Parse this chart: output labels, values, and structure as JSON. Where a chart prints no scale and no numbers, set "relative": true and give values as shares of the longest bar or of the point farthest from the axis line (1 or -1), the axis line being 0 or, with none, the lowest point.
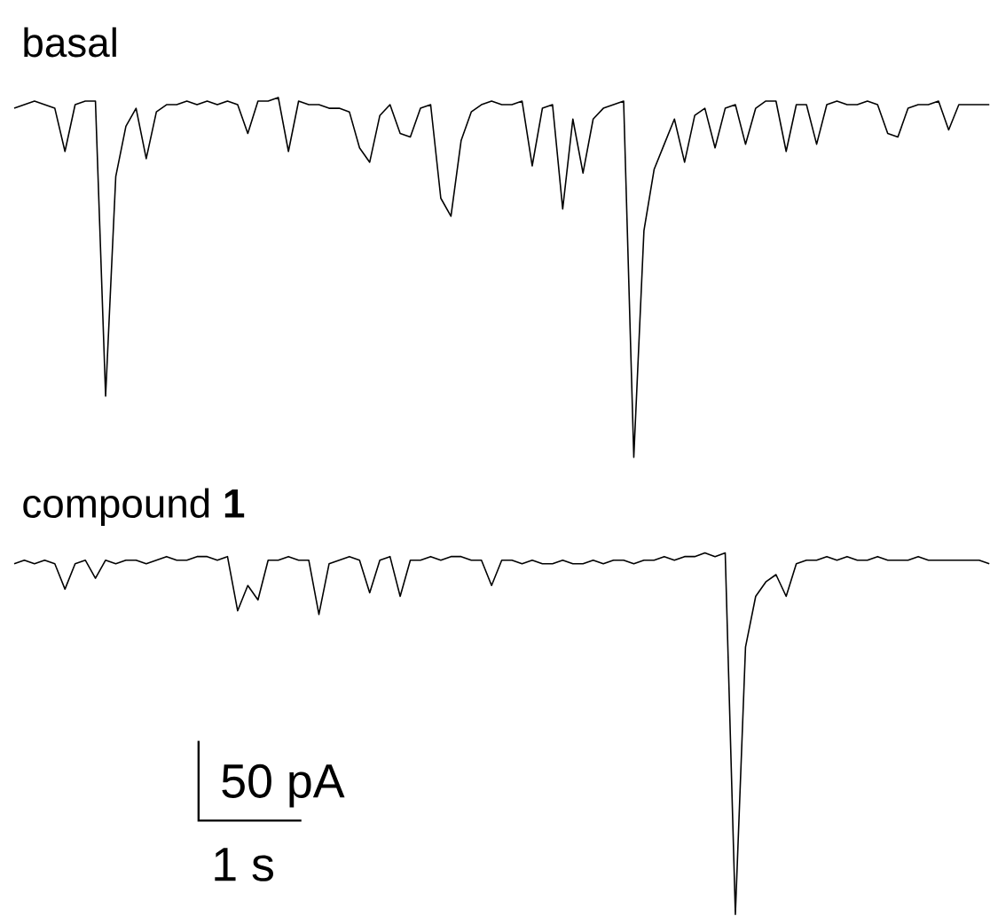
{
  "chart_data": [
    {
      "type": "line",
      "title": "basal",
      "relative": true,
      "categories": [
        null,
        null,
        null,
        null,
        null,
        null,
        null,
        null,
        null,
        null,
        null,
        null,
        null,
        null,
        null,
        null,
        null,
        null,
        null,
        null,
        null,
        null,
        null,
        null,
        null,
        null,
        null,
        null,
        null,
        null,
        null,
        null,
        null,
        null,
        null,
        null,
        null,
        null,
        null,
        null,
        null,
        null,
        null,
        null,
        null,
        null,
        null,
        null,
        null,
        null,
        null,
        null,
        null,
        null,
        null,
        null,
        null,
        null,
        null,
        null,
        null,
        null,
        null,
        null,
        null,
        null,
        null,
        null,
        null,
        null,
        null,
        null,
        null,
        null,
        null,
        null,
        null,
        null,
        null,
        null,
        null,
        null,
        null,
        null,
        null,
        null,
        null,
        null,
        null,
        null,
        null,
        null,
        null,
        null,
        null,
        null,
        null
      ],
      "series": [
        {
          "color": "#000000",
          "values": [
            0.97,
            0.98,
            0.99,
            0.98,
            0.97,
            0.85,
            0.98,
            0.99,
            0.99,
            0.17,
            0.78,
            0.92,
            0.97,
            0.83,
            0.96,
            0.98,
            0.98,
            0.99,
            0.98,
            0.99,
            0.98,
            0.99,
            0.98,
            0.9,
            0.99,
            0.99,
            1,
            0.85,
            0.99,
            0.98,
            0.98,
            0.97,
            0.97,
            0.96,
            0.86,
            0.82,
            0.95,
            0.98,
            0.9,
            0.89,
            0.97,
            0.98,
            0.72,
            0.67,
            0.88,
            0.96,
            0.98,
            0.99,
            0.98,
            0.98,
            0.99,
            0.81,
            0.97,
            0.98,
            0.69,
            0.94,
            0.79,
            0.94,
            0.97,
            0.98,
            0.99,
            0,
            0.63,
            0.8,
            0.87,
            0.94,
            0.82,
            0.95,
            0.97,
            0.86,
            0.97,
            0.98,
            0.87,
            0.97,
            0.99,
            0.99,
            0.85,
            0.98,
            0.98,
            0.87,
            0.98,
            0.99,
            0.98,
            0.98,
            0.99,
            0.98,
            0.9,
            0.89,
            0.97,
            0.98,
            0.98,
            0.99,
            0.91,
            0.98,
            0.98,
            0.98,
            0.98
          ]
        }
      ]
    },
    {
      "type": "line",
      "title": "compound **1**",
      "relative": true,
      "annotations": [
        "50 pA",
        "1 s"
      ],
      "categories": [
        null,
        null,
        null,
        null,
        null,
        null,
        null,
        null,
        null,
        null,
        null,
        null,
        null,
        null,
        null,
        null,
        null,
        null,
        null,
        null,
        null,
        null,
        null,
        null,
        null,
        null,
        null,
        null,
        null,
        null,
        null,
        null,
        null,
        null,
        null,
        null,
        null,
        null,
        null,
        null,
        null,
        null,
        null,
        null,
        null,
        null,
        null,
        null,
        null,
        null,
        null,
        null,
        null,
        null,
        null,
        null,
        null,
        null,
        null,
        null,
        null,
        null,
        null,
        null,
        null,
        null,
        null,
        null,
        null,
        null,
        null,
        null,
        null,
        null,
        null,
        null,
        null,
        null,
        null,
        null,
        null,
        null,
        null,
        null,
        null,
        null,
        null,
        null,
        null,
        null,
        null,
        null,
        null,
        null,
        null,
        null,
        null
      ],
      "series": [
        {
          "color": "#000000",
          "values": [
            0.97,
            0.98,
            0.97,
            0.98,
            0.97,
            0.9,
            0.97,
            0.98,
            0.93,
            0.98,
            0.97,
            0.98,
            0.98,
            0.97,
            0.98,
            0.99,
            0.98,
            0.98,
            0.99,
            0.99,
            0.98,
            0.99,
            0.84,
            0.91,
            0.87,
            0.98,
            0.98,
            0.99,
            0.98,
            0.98,
            0.83,
            0.97,
            0.98,
            0.99,
            0.98,
            0.89,
            0.98,
            0.99,
            0.88,
            0.98,
            0.98,
            0.99,
            0.98,
            0.99,
            0.99,
            0.98,
            0.98,
            0.91,
            0.98,
            0.98,
            0.97,
            0.98,
            0.97,
            0.97,
            0.98,
            0.97,
            0.97,
            0.98,
            0.97,
            0.98,
            0.98,
            0.97,
            0.98,
            0.98,
            0.99,
            0.98,
            0.99,
            0.99,
            1,
            0.99,
            1,
            0,
            0.74,
            0.88,
            0.92,
            0.94,
            0.88,
            0.97,
            0.98,
            0.98,
            0.99,
            0.98,
            0.99,
            0.98,
            0.98,
            0.99,
            0.98,
            0.98,
            0.98,
            0.99,
            0.98,
            0.98,
            0.98,
            0.98,
            0.98,
            0.98,
            0.97
          ]
        }
      ]
    }
  ]
}
